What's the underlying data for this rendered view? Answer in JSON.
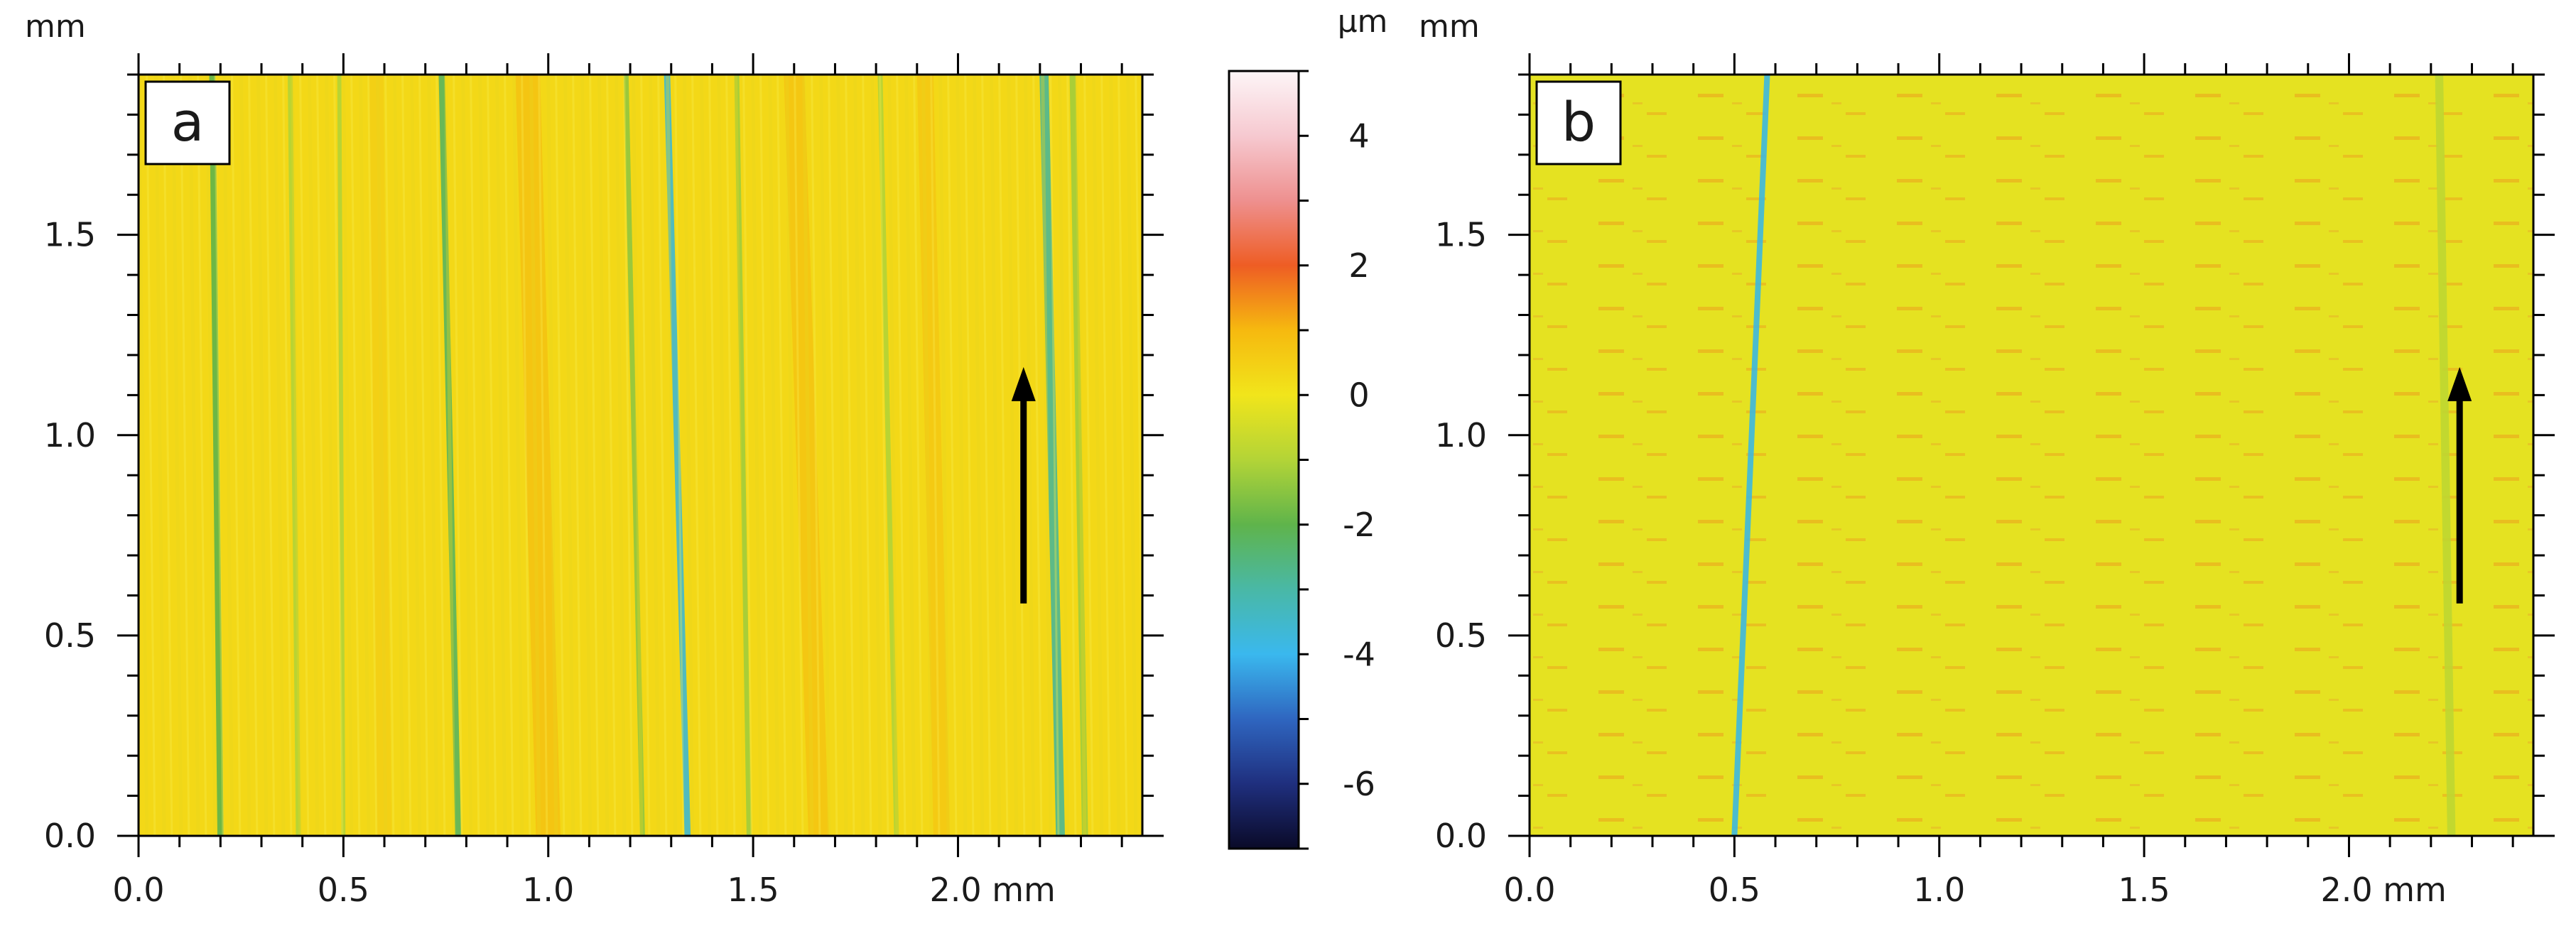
{
  "chart_data": [
    {
      "type": "heatmap",
      "panel_label": "a",
      "xunit": "mm",
      "yunit": "mm",
      "xlim": [
        0.0,
        2.45
      ],
      "ylim": [
        0.0,
        1.9
      ],
      "xticks": [
        {
          "value": 0.0,
          "label": "0.0"
        },
        {
          "value": 0.5,
          "label": "0.5"
        },
        {
          "value": 1.0,
          "label": "1.0"
        },
        {
          "value": 1.5,
          "label": "1.5"
        },
        {
          "value": 2.0,
          "label": "2.0 mm"
        }
      ],
      "yticks": [
        {
          "value": 0.0,
          "label": "0.0"
        },
        {
          "value": 0.5,
          "label": "0.5"
        },
        {
          "value": 1.0,
          "label": "1.0"
        },
        {
          "value": 1.5,
          "label": "1.5"
        }
      ],
      "base_height_um": 0.3,
      "features": [
        {
          "kind": "groove",
          "x_bottom": 0.2,
          "x_top": 0.18,
          "height_um": -2.0,
          "width": 0.015
        },
        {
          "kind": "groove",
          "x_bottom": 0.39,
          "x_top": 0.37,
          "height_um": -1.0,
          "width": 0.012
        },
        {
          "kind": "groove",
          "x_bottom": 0.5,
          "x_top": 0.49,
          "height_um": -1.0,
          "width": 0.01
        },
        {
          "kind": "groove",
          "x_bottom": 0.78,
          "x_top": 0.74,
          "height_um": -2.2,
          "width": 0.015
        },
        {
          "kind": "groove",
          "x_bottom": 1.23,
          "x_top": 1.19,
          "height_um": -1.4,
          "width": 0.012
        },
        {
          "kind": "groove",
          "x_bottom": 1.34,
          "x_top": 1.29,
          "height_um": -3.6,
          "width": 0.015
        },
        {
          "kind": "groove",
          "x_bottom": 1.49,
          "x_top": 1.46,
          "height_um": -1.2,
          "width": 0.012
        },
        {
          "kind": "groove",
          "x_bottom": 1.85,
          "x_top": 1.81,
          "height_um": -1.0,
          "width": 0.012
        },
        {
          "kind": "groove",
          "x_bottom": 2.25,
          "x_top": 2.21,
          "height_um": -2.8,
          "width": 0.022
        },
        {
          "kind": "groove",
          "x_bottom": 2.31,
          "x_top": 2.28,
          "height_um": -1.2,
          "width": 0.015
        },
        {
          "kind": "ridge",
          "x_bottom": 1.0,
          "x_top": 0.95,
          "height_um": 1.0,
          "width": 0.06
        },
        {
          "kind": "ridge",
          "x_bottom": 1.66,
          "x_top": 1.6,
          "height_um": 0.9,
          "width": 0.05
        },
        {
          "kind": "ridge",
          "x_bottom": 1.96,
          "x_top": 1.92,
          "height_um": 0.8,
          "width": 0.04
        },
        {
          "kind": "ridge",
          "x_bottom": 0.6,
          "x_top": 0.58,
          "height_um": 0.6,
          "width": 0.035
        }
      ],
      "arrow": {
        "x": 2.16,
        "y_start": 0.58,
        "y_end": 1.17
      },
      "color_scale": "z_scale"
    },
    {
      "type": "heatmap",
      "panel_label": "b",
      "xunit": "mm",
      "yunit": "mm",
      "xlim": [
        0.0,
        2.45
      ],
      "ylim": [
        0.0,
        1.9
      ],
      "xticks": [
        {
          "value": 0.0,
          "label": "0.0"
        },
        {
          "value": 0.5,
          "label": "0.5"
        },
        {
          "value": 1.0,
          "label": "1.0"
        },
        {
          "value": 1.5,
          "label": "1.5"
        },
        {
          "value": 2.0,
          "label": "2.0 mm"
        }
      ],
      "yticks": [
        {
          "value": 0.0,
          "label": "0.0"
        },
        {
          "value": 0.5,
          "label": "0.5"
        },
        {
          "value": 1.0,
          "label": "1.0"
        },
        {
          "value": 1.5,
          "label": "1.5"
        }
      ],
      "base_height_um": -0.2,
      "features": [
        {
          "kind": "groove",
          "x_bottom": 0.5,
          "x_top": 0.58,
          "height_um": -3.8,
          "width": 0.014
        },
        {
          "kind": "groove",
          "x_bottom": 2.25,
          "x_top": 2.22,
          "height_um": -0.8,
          "width": 0.02
        }
      ],
      "arrow": {
        "x": 2.27,
        "y_start": 0.58,
        "y_end": 1.17
      },
      "color_scale": "z_scale"
    }
  ],
  "z_scale": {
    "unit": "µm",
    "range": [
      -7,
      5
    ],
    "ticks": [
      {
        "value": 4,
        "label": "4"
      },
      {
        "value": 2,
        "label": "2"
      },
      {
        "value": 0,
        "label": "0"
      },
      {
        "value": -2,
        "label": "-2"
      },
      {
        "value": -4,
        "label": "-4"
      },
      {
        "value": -6,
        "label": "-6"
      }
    ],
    "stops": [
      {
        "value": -7,
        "color": "#0a0a28"
      },
      {
        "value": -6,
        "color": "#1f2f7e"
      },
      {
        "value": -5,
        "color": "#2f66c0"
      },
      {
        "value": -4,
        "color": "#3ab8ee"
      },
      {
        "value": -3,
        "color": "#49b8a6"
      },
      {
        "value": -2,
        "color": "#5fb44b"
      },
      {
        "value": -1,
        "color": "#b3d437"
      },
      {
        "value": 0,
        "color": "#f1e51b"
      },
      {
        "value": 1,
        "color": "#f6b90f"
      },
      {
        "value": 2,
        "color": "#ee5d24"
      },
      {
        "value": 3,
        "color": "#ee908f"
      },
      {
        "value": 4,
        "color": "#f6c9d0"
      },
      {
        "value": 5,
        "color": "#fdf5f7"
      }
    ]
  }
}
